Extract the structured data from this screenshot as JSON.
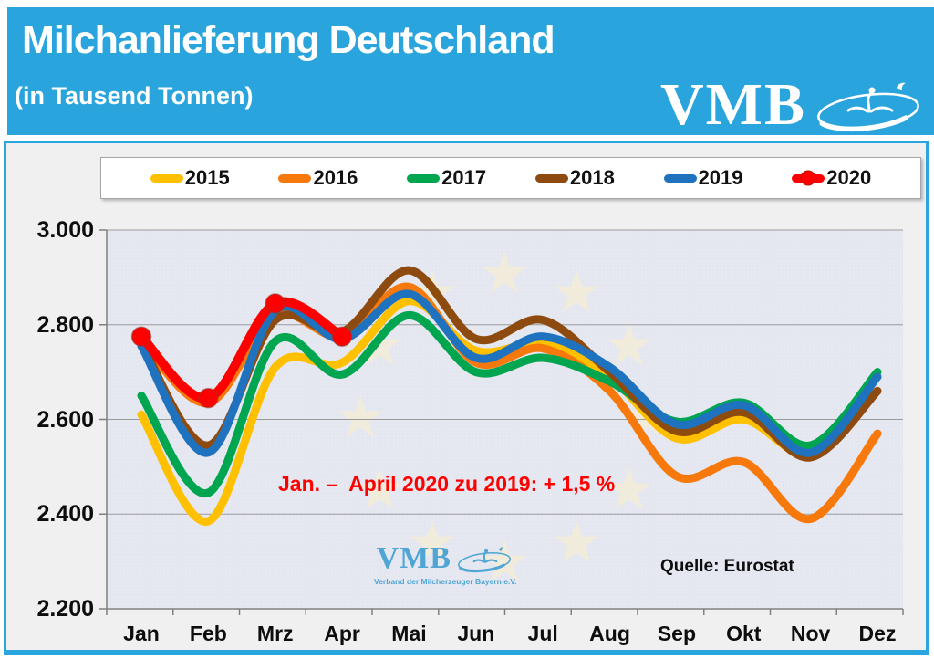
{
  "header": {
    "title": "Milchanlieferung Deutschland",
    "subtitle": "(in Tausend Tonnen)",
    "logo_text": "VMB"
  },
  "colors": {
    "header_bg": "#2AA4DC",
    "panel_border": "#2AA6DE",
    "plot_bg": "#E4E6F0",
    "gridline": "#9B9B9B",
    "axis": "#808080",
    "star_watermark": "#F4EDD7",
    "annotation_red": "#FF0000",
    "watermark_blue": "#4FA6D4"
  },
  "chart_data": {
    "type": "line",
    "title": "Milchanlieferung Deutschland (in Tausend Tonnen)",
    "unit": "Tausend Tonnen",
    "categories": [
      "Jan",
      "Feb",
      "Mrz",
      "Apr",
      "Mai",
      "Jun",
      "Jul",
      "Aug",
      "Sep",
      "Okt",
      "Nov",
      "Dez"
    ],
    "series": [
      {
        "name": "2015",
        "color": "#FFC000",
        "values": [
          2610,
          2385,
          2710,
          2720,
          2850,
          2745,
          2760,
          2690,
          2560,
          2600,
          2525,
          2660
        ]
      },
      {
        "name": "2016",
        "color": "#F8790B",
        "values": [
          2765,
          2635,
          2820,
          2775,
          2880,
          2720,
          2750,
          2660,
          2480,
          2510,
          2390,
          2570
        ]
      },
      {
        "name": "2017",
        "color": "#00A550",
        "values": [
          2650,
          2445,
          2765,
          2695,
          2820,
          2700,
          2730,
          2680,
          2595,
          2635,
          2545,
          2700
        ]
      },
      {
        "name": "2018",
        "color": "#8E4B10",
        "values": [
          2760,
          2545,
          2810,
          2785,
          2915,
          2770,
          2810,
          2700,
          2575,
          2615,
          2520,
          2660
        ]
      },
      {
        "name": "2019",
        "color": "#1F72BE",
        "values": [
          2755,
          2530,
          2830,
          2770,
          2865,
          2730,
          2775,
          2710,
          2590,
          2630,
          2530,
          2690
        ]
      },
      {
        "name": "2020",
        "color": "#FE0000",
        "marker": true,
        "values": [
          2775,
          2645,
          2845,
          2775,
          null,
          null,
          null,
          null,
          null,
          null,
          null,
          null
        ]
      }
    ],
    "ylim": [
      2200,
      3000
    ],
    "ytick_step": 200,
    "yticks": [
      "2.200",
      "2.400",
      "2.600",
      "2.800",
      "3.000"
    ],
    "legend_position": "top",
    "grid": "horizontal"
  },
  "annotations": {
    "comparison": "Jan. –  April 2020 zu 2019: + 1,5 %",
    "source": "Quelle: Eurostat",
    "watermark_logo": "VMB",
    "watermark_org": "Verband der Milcherzeuger Bayern e.V."
  }
}
